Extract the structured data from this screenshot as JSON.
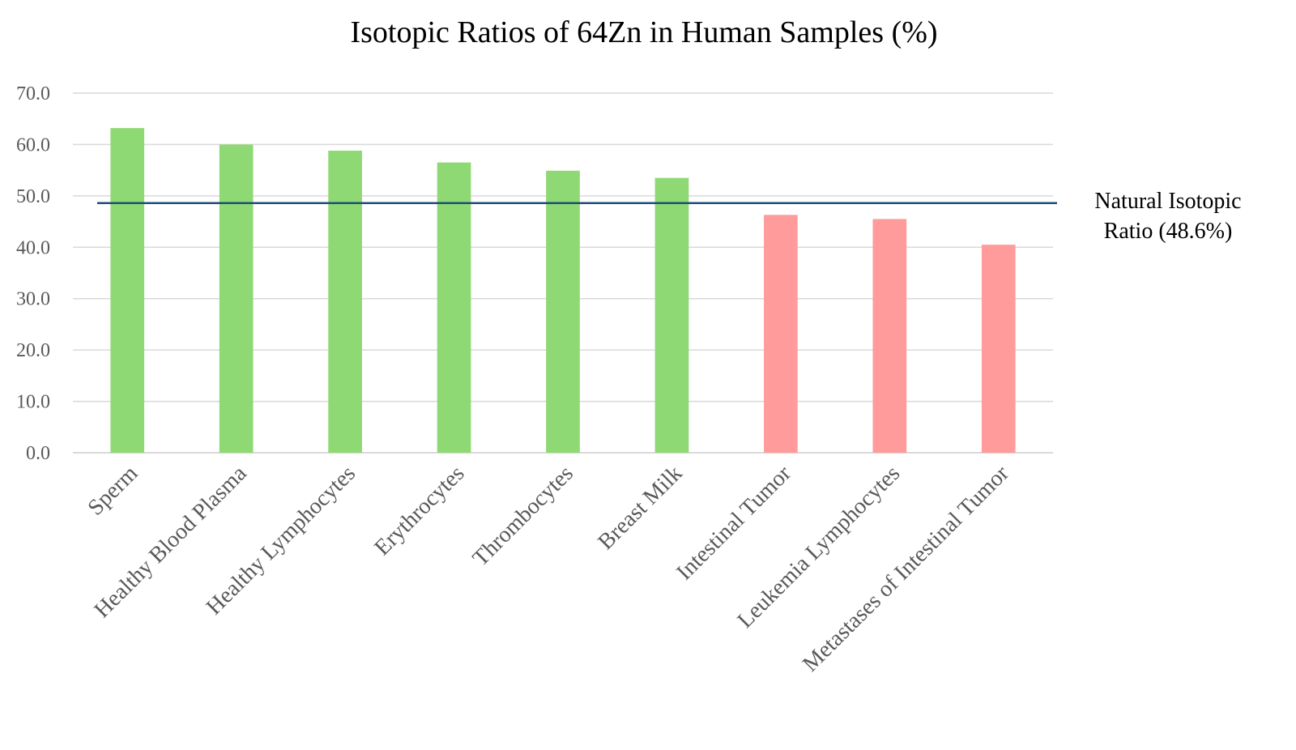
{
  "chart_data": {
    "type": "bar",
    "title": "Isotopic Ratios of 64Zn in Human Samples (%)",
    "xlabel": "",
    "ylabel": "",
    "ylim": [
      0,
      70
    ],
    "y_ticks": [
      "0.0",
      "10.0",
      "20.0",
      "30.0",
      "40.0",
      "50.0",
      "60.0",
      "70.0"
    ],
    "categories": [
      "Sperm",
      "Healthy Blood Plasma",
      "Healthy Lymphocytes",
      "Erythrocytes",
      "Thrombocytes",
      "Breast Milk",
      "Intestinal Tumor",
      "Leukemia Lymphocytes",
      "Metastases of Intestinal Tumor"
    ],
    "values": [
      63.2,
      60.0,
      58.8,
      56.5,
      54.9,
      53.5,
      46.3,
      45.5,
      40.5
    ],
    "bar_colors": [
      "#8fd974",
      "#8fd974",
      "#8fd974",
      "#8fd974",
      "#8fd974",
      "#8fd974",
      "#ff9b9b",
      "#ff9b9b",
      "#ff9b9b"
    ],
    "grid": true,
    "legend": "none",
    "reference_line": {
      "value": 48.6,
      "label_lines": [
        "Natural Isotopic",
        "Ratio (48.6%)"
      ],
      "color": "#1f4e79"
    },
    "grid_color": "#d9d9d9"
  }
}
